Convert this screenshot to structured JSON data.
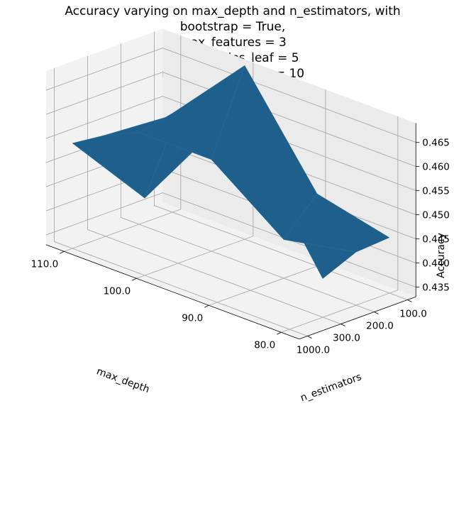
{
  "chart_data": {
    "type": "surface3d",
    "title_lines": [
      "Accuracy varying on max_depth and n_estimators, with",
      "bootstrap = True,",
      "max_features = 3",
      "min_samples_leaf = 5",
      "min_samples_split = 10"
    ],
    "xlabel": "max_depth",
    "ylabel": "n_estimators",
    "zlabel": "Accuracy",
    "x_ticks": [
      "80.0",
      "90.0",
      "100.0",
      "110.0"
    ],
    "y_ticks": [
      "100.0",
      "200.0",
      "300.0",
      "1000.0"
    ],
    "z_ticks": [
      "0.435",
      "0.440",
      "0.445",
      "0.450",
      "0.455",
      "0.460",
      "0.465"
    ],
    "zlim": [
      0.433,
      0.469
    ],
    "grid": true,
    "surface_color": "#1f5f8b",
    "max_depth": [
      80,
      90,
      100,
      110
    ],
    "n_estimators": [
      100,
      200,
      300,
      1000
    ],
    "accuracy": [
      [
        0.468,
        0.441,
        0.444,
        0.4445
      ],
      [
        0.469,
        0.464,
        0.441,
        0.448
      ],
      [
        0.449,
        0.464,
        0.452,
        0.469
      ],
      [
        0.4548,
        0.454,
        0.452,
        0.4535
      ]
    ]
  }
}
